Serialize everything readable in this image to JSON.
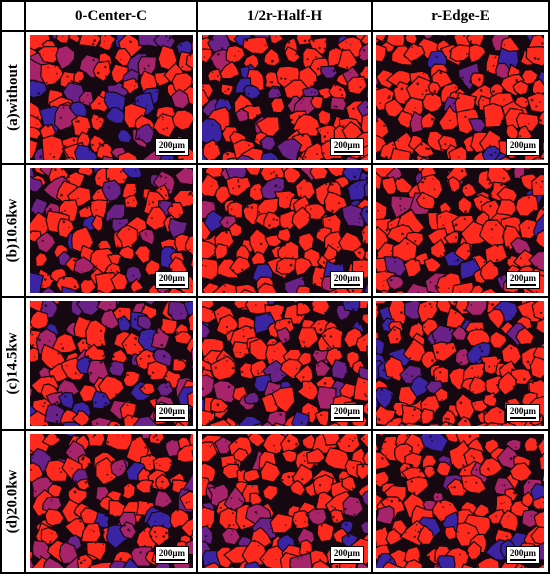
{
  "columns": [
    "0-Center-C",
    "1/2r-Half-H",
    "r-Edge-E"
  ],
  "rows": [
    "(a)without",
    "(b)10.6kw",
    "(c)14.5kw",
    "(d)20.0kw"
  ],
  "scale_bar": "200μm",
  "colors": {
    "grain_red": "#ff2a1e",
    "grain_magenta": "#a8246a",
    "grain_purple": "#6a2288",
    "grain_blue": "#3a24a4",
    "boundary": "#160810"
  }
}
